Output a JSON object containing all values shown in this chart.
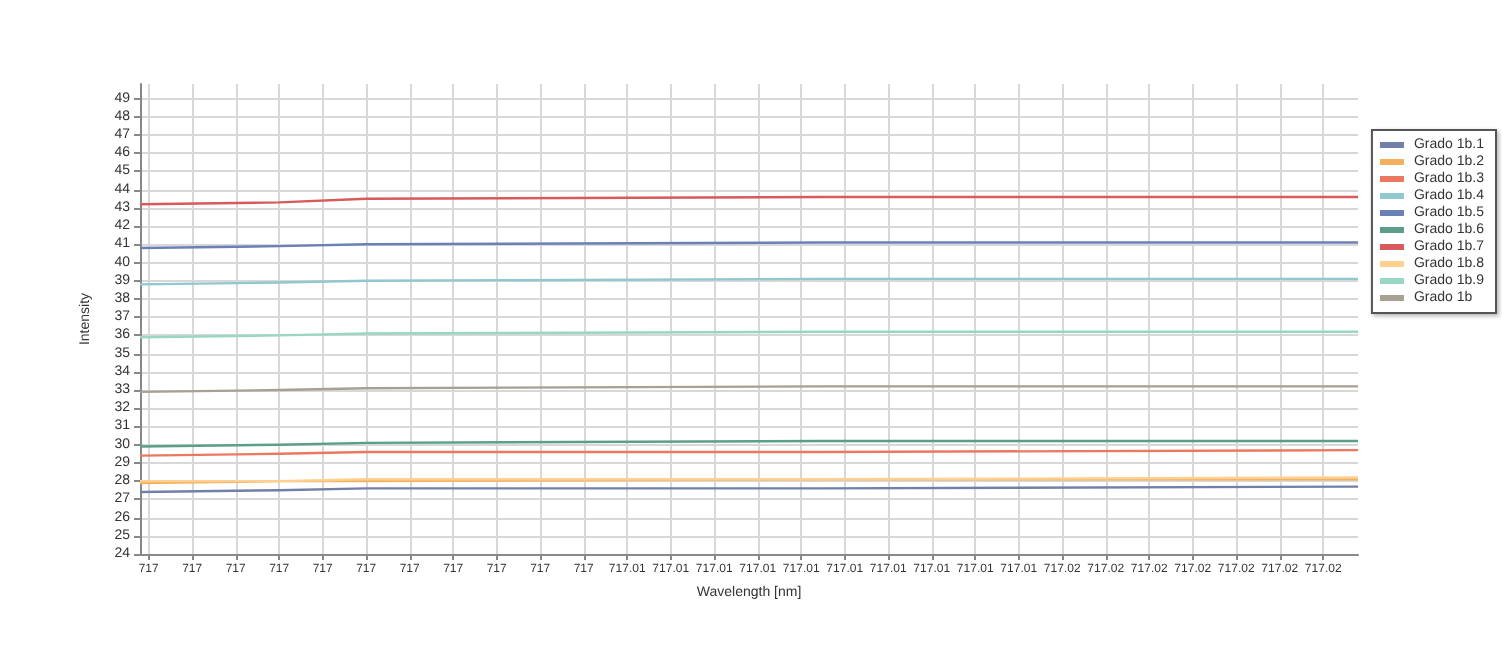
{
  "chart_data": {
    "type": "line",
    "xlabel": "Wavelength [nm]",
    "ylabel": "Intensity",
    "x": [
      716.9943,
      716.9975,
      716.9995,
      717.01,
      717.0223
    ],
    "xlim": [
      716.9943,
      717.0223
    ],
    "xticks": [
      {
        "value": 716.9945,
        "label": "717"
      },
      {
        "value": 716.9955,
        "label": "717"
      },
      {
        "value": 716.9965,
        "label": "717"
      },
      {
        "value": 716.9975,
        "label": "717"
      },
      {
        "value": 716.9985,
        "label": "717"
      },
      {
        "value": 716.9995,
        "label": "717"
      },
      {
        "value": 717.0005,
        "label": "717"
      },
      {
        "value": 717.0015,
        "label": "717"
      },
      {
        "value": 717.0025,
        "label": "717"
      },
      {
        "value": 717.0035,
        "label": "717"
      },
      {
        "value": 717.0045,
        "label": "717"
      },
      {
        "value": 717.0055,
        "label": "717.01"
      },
      {
        "value": 717.0065,
        "label": "717.01"
      },
      {
        "value": 717.0075,
        "label": "717.01"
      },
      {
        "value": 717.0085,
        "label": "717.01"
      },
      {
        "value": 717.0095,
        "label": "717.01"
      },
      {
        "value": 717.0105,
        "label": "717.01"
      },
      {
        "value": 717.0115,
        "label": "717.01"
      },
      {
        "value": 717.0125,
        "label": "717.01"
      },
      {
        "value": 717.0135,
        "label": "717.01"
      },
      {
        "value": 717.0145,
        "label": "717.01"
      },
      {
        "value": 717.0155,
        "label": "717.02"
      },
      {
        "value": 717.0165,
        "label": "717.02"
      },
      {
        "value": 717.0175,
        "label": "717.02"
      },
      {
        "value": 717.0185,
        "label": "717.02"
      },
      {
        "value": 717.0195,
        "label": "717.02"
      },
      {
        "value": 717.0205,
        "label": "717.02"
      },
      {
        "value": 717.0215,
        "label": "717.02"
      }
    ],
    "ylim": [
      24,
      49.8
    ],
    "yticks": [
      24,
      25,
      26,
      27,
      28,
      29,
      30,
      31,
      32,
      33,
      34,
      35,
      36,
      37,
      38,
      39,
      40,
      41,
      42,
      43,
      44,
      45,
      46,
      47,
      48,
      49
    ],
    "grid": true,
    "legend": "top right",
    "marker": "none",
    "line_style": "solid",
    "series": [
      {
        "name": "Grado 1b.1",
        "color": "#7080a8",
        "values": [
          27.4,
          27.5,
          27.6,
          27.6,
          27.7
        ]
      },
      {
        "name": "Grado 1b.2",
        "color": "#f4b060",
        "values": [
          27.9,
          28.0,
          28.0,
          28.1,
          28.1
        ]
      },
      {
        "name": "Grado 1b.3",
        "color": "#ec7860",
        "values": [
          29.4,
          29.5,
          29.6,
          29.6,
          29.7
        ]
      },
      {
        "name": "Grado 1b.4",
        "color": "#90c8d0",
        "values": [
          38.8,
          38.9,
          39.0,
          39.1,
          39.1
        ]
      },
      {
        "name": "Grado 1b.5",
        "color": "#6c80b8",
        "values": [
          40.8,
          40.9,
          41.0,
          41.1,
          41.1
        ]
      },
      {
        "name": "Grado 1b.6",
        "color": "#5aa088",
        "values": [
          29.9,
          30.0,
          30.1,
          30.2,
          30.2
        ]
      },
      {
        "name": "Grado 1b.7",
        "color": "#d85a5a",
        "values": [
          43.2,
          43.3,
          43.5,
          43.6,
          43.6
        ]
      },
      {
        "name": "Grado 1b.8",
        "color": "#ffd090",
        "values": [
          28.0,
          28.0,
          28.1,
          28.1,
          28.2
        ]
      },
      {
        "name": "Grado 1b.9",
        "color": "#98d8c0",
        "values": [
          35.9,
          36.0,
          36.1,
          36.2,
          36.2
        ]
      },
      {
        "name": "Grado 1b",
        "color": "#a8a090",
        "values": [
          32.9,
          33.0,
          33.1,
          33.2,
          33.2
        ]
      }
    ]
  }
}
